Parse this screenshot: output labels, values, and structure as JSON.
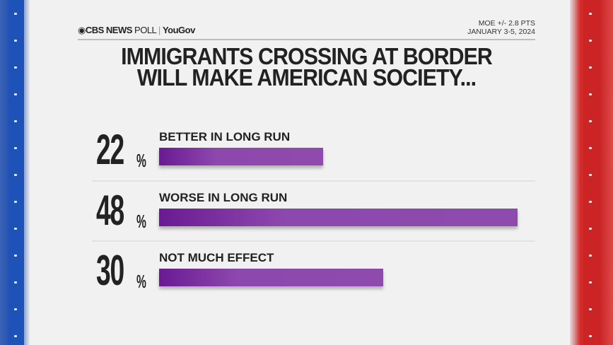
{
  "header": {
    "brand": "CBS NEWS",
    "brand_suffix": "POLL",
    "partner": "YouGov",
    "moe": "MOE +/- 2.8 PTS",
    "dates": "JANUARY 3-5, 2024"
  },
  "colors": {
    "bar": "#8e4aac",
    "bar_dark": "#6a1a92",
    "left_frame": "#1d52b8",
    "right_frame": "#cc2424"
  },
  "chart_data": {
    "type": "bar",
    "orientation": "horizontal",
    "title": "IMMIGRANTS CROSSING AT BORDER WILL MAKE AMERICAN SOCIETY...",
    "title_lines": [
      "IMMIGRANTS CROSSING AT BORDER",
      "WILL MAKE AMERICAN SOCIETY..."
    ],
    "categories": [
      "BETTER IN LONG RUN",
      "WORSE IN LONG RUN",
      "NOT MUCH EFFECT"
    ],
    "values": [
      22,
      48,
      30
    ],
    "value_labels": [
      "22",
      "48",
      "30"
    ],
    "unit": "%",
    "grid": false
  }
}
